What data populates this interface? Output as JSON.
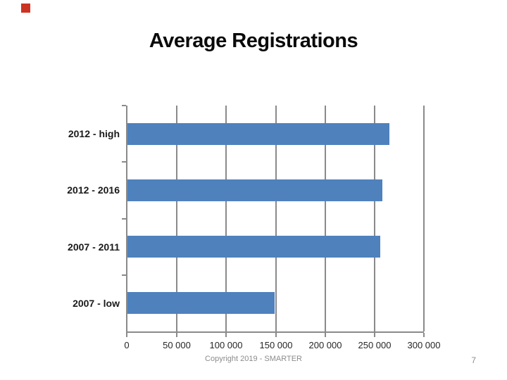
{
  "slide": {
    "title": "Average Registrations",
    "footer": "Copyright 2019 - SMARTER",
    "page_number": "7",
    "accent_square_color": "#cc3322"
  },
  "chart_data": {
    "type": "bar",
    "orientation": "horizontal",
    "title": "Average Registrations",
    "categories": [
      "2012 - high",
      "2012 - 2016",
      "2007 - 2011",
      "2007 - low"
    ],
    "values": [
      265000,
      258000,
      256000,
      149000
    ],
    "xlabel": "",
    "ylabel": "",
    "xlim": [
      0,
      300000
    ],
    "x_ticks": [
      0,
      50000,
      100000,
      150000,
      200000,
      250000,
      300000
    ],
    "x_tick_labels": [
      "0",
      "50 000",
      "100 000",
      "150 000",
      "200 000",
      "250 000",
      "300 000"
    ],
    "grid": true,
    "legend": false,
    "bar_color": "#4f81bd",
    "axis_color": "#8a8a8a",
    "label_color": "#1a1a1a"
  }
}
